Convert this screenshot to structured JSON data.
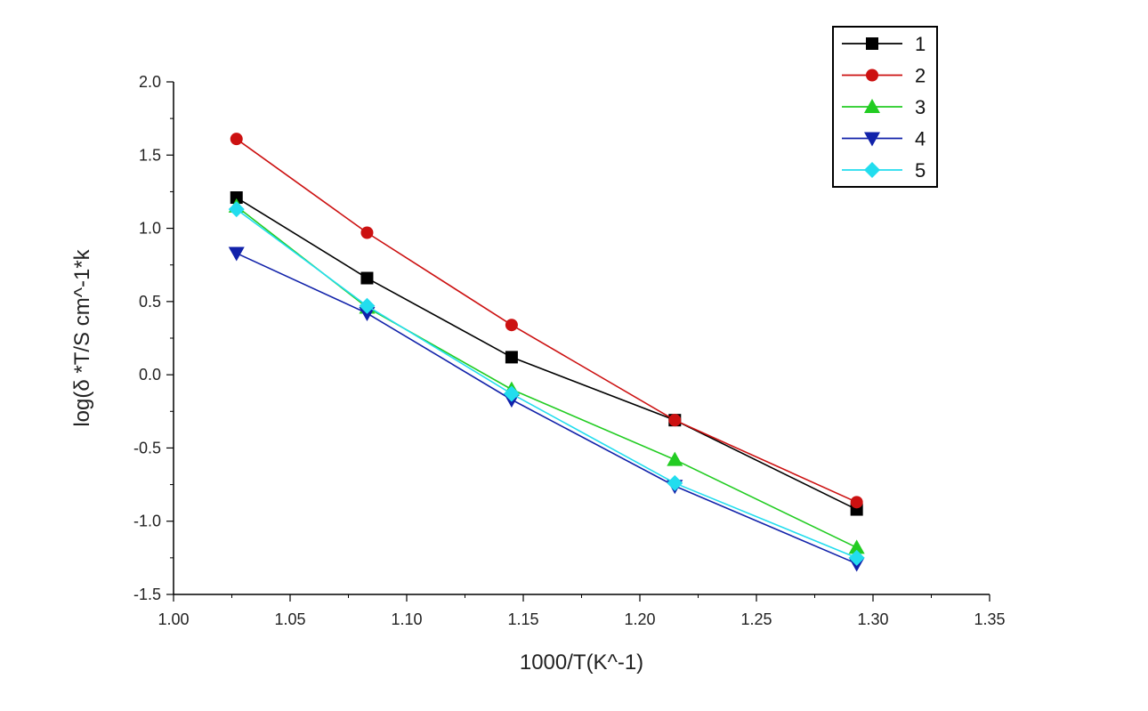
{
  "chart_data": {
    "type": "line",
    "title": "",
    "xlabel": "1000/T(K^-1)",
    "ylabel": "log(δ   *T/S cm^-1*k",
    "xlim": [
      1.0,
      1.35
    ],
    "ylim": [
      -1.5,
      2.0
    ],
    "xticks": [
      "1.00",
      "1.05",
      "1.10",
      "1.15",
      "1.20",
      "1.25",
      "1.30",
      "1.35"
    ],
    "yticks": [
      "2.0",
      "1.5",
      "1.0",
      "0.5",
      "0.0",
      "-0.5",
      "-1.0",
      "-1.5"
    ],
    "grid": false,
    "legend_position": "top-right",
    "x": [
      1.027,
      1.083,
      1.145,
      1.215,
      1.293
    ],
    "series": [
      {
        "name": "1",
        "color": "#000000",
        "marker": "square",
        "values": [
          1.21,
          0.66,
          0.12,
          -0.31,
          -0.92
        ]
      },
      {
        "name": "2",
        "color": "#cc1111",
        "marker": "circle",
        "values": [
          1.61,
          0.97,
          0.34,
          -0.31,
          -0.87
        ]
      },
      {
        "name": "3",
        "color": "#22cc22",
        "marker": "triangle-up",
        "values": [
          1.15,
          0.46,
          -0.1,
          -0.58,
          -1.18
        ]
      },
      {
        "name": "4",
        "color": "#1122aa",
        "marker": "triangle-down",
        "values": [
          0.83,
          0.42,
          -0.17,
          -0.76,
          -1.29
        ]
      },
      {
        "name": "5",
        "color": "#22ddee",
        "marker": "diamond",
        "values": [
          1.13,
          0.47,
          -0.13,
          -0.74,
          -1.25
        ]
      }
    ]
  }
}
